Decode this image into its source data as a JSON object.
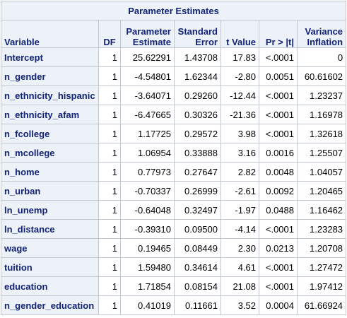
{
  "table": {
    "title": "Parameter Estimates",
    "headers": {
      "variable": "Variable",
      "df": "DF",
      "estimate_line1": "Parameter",
      "estimate_line2": "Estimate",
      "stderr_line1": "Standard",
      "stderr_line2": "Error",
      "tvalue": "t Value",
      "pvalue": "Pr > |t|",
      "vif_line1": "Variance",
      "vif_line2": "Inflation"
    },
    "rows": [
      {
        "variable": "Intercept",
        "df": "1",
        "estimate": "25.62291",
        "stderr": "1.43708",
        "tvalue": "17.83",
        "pvalue": "<.0001",
        "vif": "0"
      },
      {
        "variable": "n_gender",
        "df": "1",
        "estimate": "-4.54801",
        "stderr": "1.62344",
        "tvalue": "-2.80",
        "pvalue": "0.0051",
        "vif": "60.61602"
      },
      {
        "variable": "n_ethnicity_hispanic",
        "df": "1",
        "estimate": "-3.64071",
        "stderr": "0.29260",
        "tvalue": "-12.44",
        "pvalue": "<.0001",
        "vif": "1.23237"
      },
      {
        "variable": "n_ethnicity_afam",
        "df": "1",
        "estimate": "-6.47665",
        "stderr": "0.30326",
        "tvalue": "-21.36",
        "pvalue": "<.0001",
        "vif": "1.16978"
      },
      {
        "variable": "n_fcollege",
        "df": "1",
        "estimate": "1.17725",
        "stderr": "0.29572",
        "tvalue": "3.98",
        "pvalue": "<.0001",
        "vif": "1.32618"
      },
      {
        "variable": "n_mcollege",
        "df": "1",
        "estimate": "1.06954",
        "stderr": "0.33888",
        "tvalue": "3.16",
        "pvalue": "0.0016",
        "vif": "1.25507"
      },
      {
        "variable": "n_home",
        "df": "1",
        "estimate": "0.77973",
        "stderr": "0.27647",
        "tvalue": "2.82",
        "pvalue": "0.0048",
        "vif": "1.04057"
      },
      {
        "variable": "n_urban",
        "df": "1",
        "estimate": "-0.70337",
        "stderr": "0.26999",
        "tvalue": "-2.61",
        "pvalue": "0.0092",
        "vif": "1.20465"
      },
      {
        "variable": "ln_unemp",
        "df": "1",
        "estimate": "-0.64048",
        "stderr": "0.32497",
        "tvalue": "-1.97",
        "pvalue": "0.0488",
        "vif": "1.16462"
      },
      {
        "variable": "ln_distance",
        "df": "1",
        "estimate": "-0.39310",
        "stderr": "0.09500",
        "tvalue": "-4.14",
        "pvalue": "<.0001",
        "vif": "1.23283"
      },
      {
        "variable": "wage",
        "df": "1",
        "estimate": "0.19465",
        "stderr": "0.08449",
        "tvalue": "2.30",
        "pvalue": "0.0213",
        "vif": "1.20708"
      },
      {
        "variable": "tuition",
        "df": "1",
        "estimate": "1.59480",
        "stderr": "0.34614",
        "tvalue": "4.61",
        "pvalue": "<.0001",
        "vif": "1.27472"
      },
      {
        "variable": "education",
        "df": "1",
        "estimate": "1.71854",
        "stderr": "0.08154",
        "tvalue": "21.08",
        "pvalue": "<.0001",
        "vif": "1.97412"
      },
      {
        "variable": "n_gender_education",
        "df": "1",
        "estimate": "0.41019",
        "stderr": "0.11661",
        "tvalue": "3.52",
        "pvalue": "0.0004",
        "vif": "61.66924"
      }
    ]
  }
}
